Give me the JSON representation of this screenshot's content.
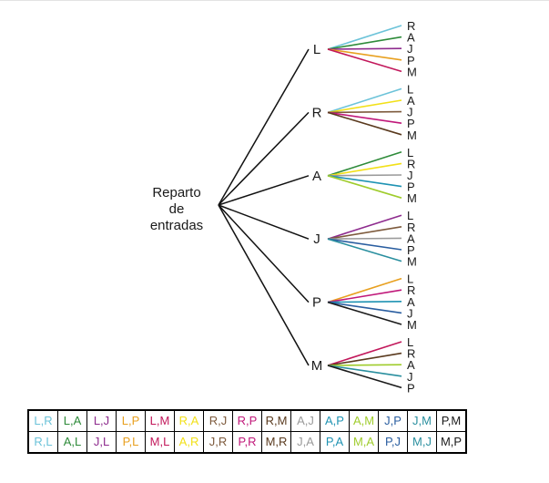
{
  "root_label": [
    "Reparto",
    "de",
    "entradas"
  ],
  "colors": {
    "L": "#6cc3d9",
    "A": "#2e8b3a",
    "J": "#8e2c8e",
    "P": "#e8a020",
    "M": "#c2185b",
    "R": "#f2e018",
    "Rb": "#7d5a3c",
    "Rp": "#c0187a",
    "Rm": "#5a3a1e",
    "Ag": "#9a9a9a",
    "Ab": "#1f93b3",
    "Ay": "#9fcc2c",
    "Jb": "#2a5ea0",
    "Jt": "#2a8f9f",
    "Pk": "#1a1a1a"
  },
  "tree": [
    {
      "label": "L",
      "leaves": [
        {
          "label": "R",
          "color": "#6cc3d9"
        },
        {
          "label": "A",
          "color": "#2e8b3a"
        },
        {
          "label": "J",
          "color": "#8e2c8e"
        },
        {
          "label": "P",
          "color": "#e8a020"
        },
        {
          "label": "M",
          "color": "#c2185b"
        }
      ]
    },
    {
      "label": "R",
      "leaves": [
        {
          "label": "L",
          "color": "#6cc3d9"
        },
        {
          "label": "A",
          "color": "#f2e018"
        },
        {
          "label": "J",
          "color": "#7d5a3c"
        },
        {
          "label": "P",
          "color": "#c0187a"
        },
        {
          "label": "M",
          "color": "#5a3a1e"
        }
      ]
    },
    {
      "label": "A",
      "leaves": [
        {
          "label": "L",
          "color": "#2e8b3a"
        },
        {
          "label": "R",
          "color": "#f2e018"
        },
        {
          "label": "J",
          "color": "#9a9a9a"
        },
        {
          "label": "P",
          "color": "#1f93b3"
        },
        {
          "label": "M",
          "color": "#9fcc2c"
        }
      ]
    },
    {
      "label": "J",
      "leaves": [
        {
          "label": "L",
          "color": "#8e2c8e"
        },
        {
          "label": "R",
          "color": "#7d5a3c"
        },
        {
          "label": "A",
          "color": "#9a9a9a"
        },
        {
          "label": "P",
          "color": "#2a5ea0"
        },
        {
          "label": "M",
          "color": "#2a8f9f"
        }
      ]
    },
    {
      "label": "P",
      "leaves": [
        {
          "label": "L",
          "color": "#e8a020"
        },
        {
          "label": "R",
          "color": "#c0187a"
        },
        {
          "label": "A",
          "color": "#1f93b3"
        },
        {
          "label": "J",
          "color": "#2a5ea0"
        },
        {
          "label": "M",
          "color": "#1a1a1a"
        }
      ]
    },
    {
      "label": "M",
      "leaves": [
        {
          "label": "L",
          "color": "#c2185b"
        },
        {
          "label": "R",
          "color": "#5a3a1e"
        },
        {
          "label": "A",
          "color": "#9fcc2c"
        },
        {
          "label": "J",
          "color": "#2a8f9f"
        },
        {
          "label": "P",
          "color": "#1a1a1a"
        }
      ]
    }
  ],
  "table": [
    [
      {
        "text": "L,R",
        "color": "#6cc3d9"
      },
      {
        "text": "L,A",
        "color": "#2e8b3a"
      },
      {
        "text": "L,J",
        "color": "#8e2c8e"
      },
      {
        "text": "L,P",
        "color": "#e8a020"
      },
      {
        "text": "L,M",
        "color": "#c2185b"
      },
      {
        "text": "R,A",
        "color": "#f2e018"
      },
      {
        "text": "R,J",
        "color": "#7d5a3c"
      },
      {
        "text": "R,P",
        "color": "#c0187a"
      },
      {
        "text": "R,M",
        "color": "#5a3a1e"
      },
      {
        "text": "A,J",
        "color": "#9a9a9a"
      },
      {
        "text": "A,P",
        "color": "#1f93b3"
      },
      {
        "text": "A,M",
        "color": "#9fcc2c"
      },
      {
        "text": "J,P",
        "color": "#2a5ea0"
      },
      {
        "text": "J,M",
        "color": "#2a8f9f"
      },
      {
        "text": "P,M",
        "color": "#1a1a1a"
      }
    ],
    [
      {
        "text": "R,L",
        "color": "#6cc3d9"
      },
      {
        "text": "A,L",
        "color": "#2e8b3a"
      },
      {
        "text": "J,L",
        "color": "#8e2c8e"
      },
      {
        "text": "P,L",
        "color": "#e8a020"
      },
      {
        "text": "M,L",
        "color": "#c2185b"
      },
      {
        "text": "A,R",
        "color": "#f2e018"
      },
      {
        "text": "J,R",
        "color": "#7d5a3c"
      },
      {
        "text": "P,R",
        "color": "#c0187a"
      },
      {
        "text": "M,R",
        "color": "#5a3a1e"
      },
      {
        "text": "J,A",
        "color": "#9a9a9a"
      },
      {
        "text": "P,A",
        "color": "#1f93b3"
      },
      {
        "text": "M,A",
        "color": "#9fcc2c"
      },
      {
        "text": "P,J",
        "color": "#2a5ea0"
      },
      {
        "text": "M,J",
        "color": "#2a8f9f"
      },
      {
        "text": "M,P",
        "color": "#1a1a1a"
      }
    ]
  ]
}
